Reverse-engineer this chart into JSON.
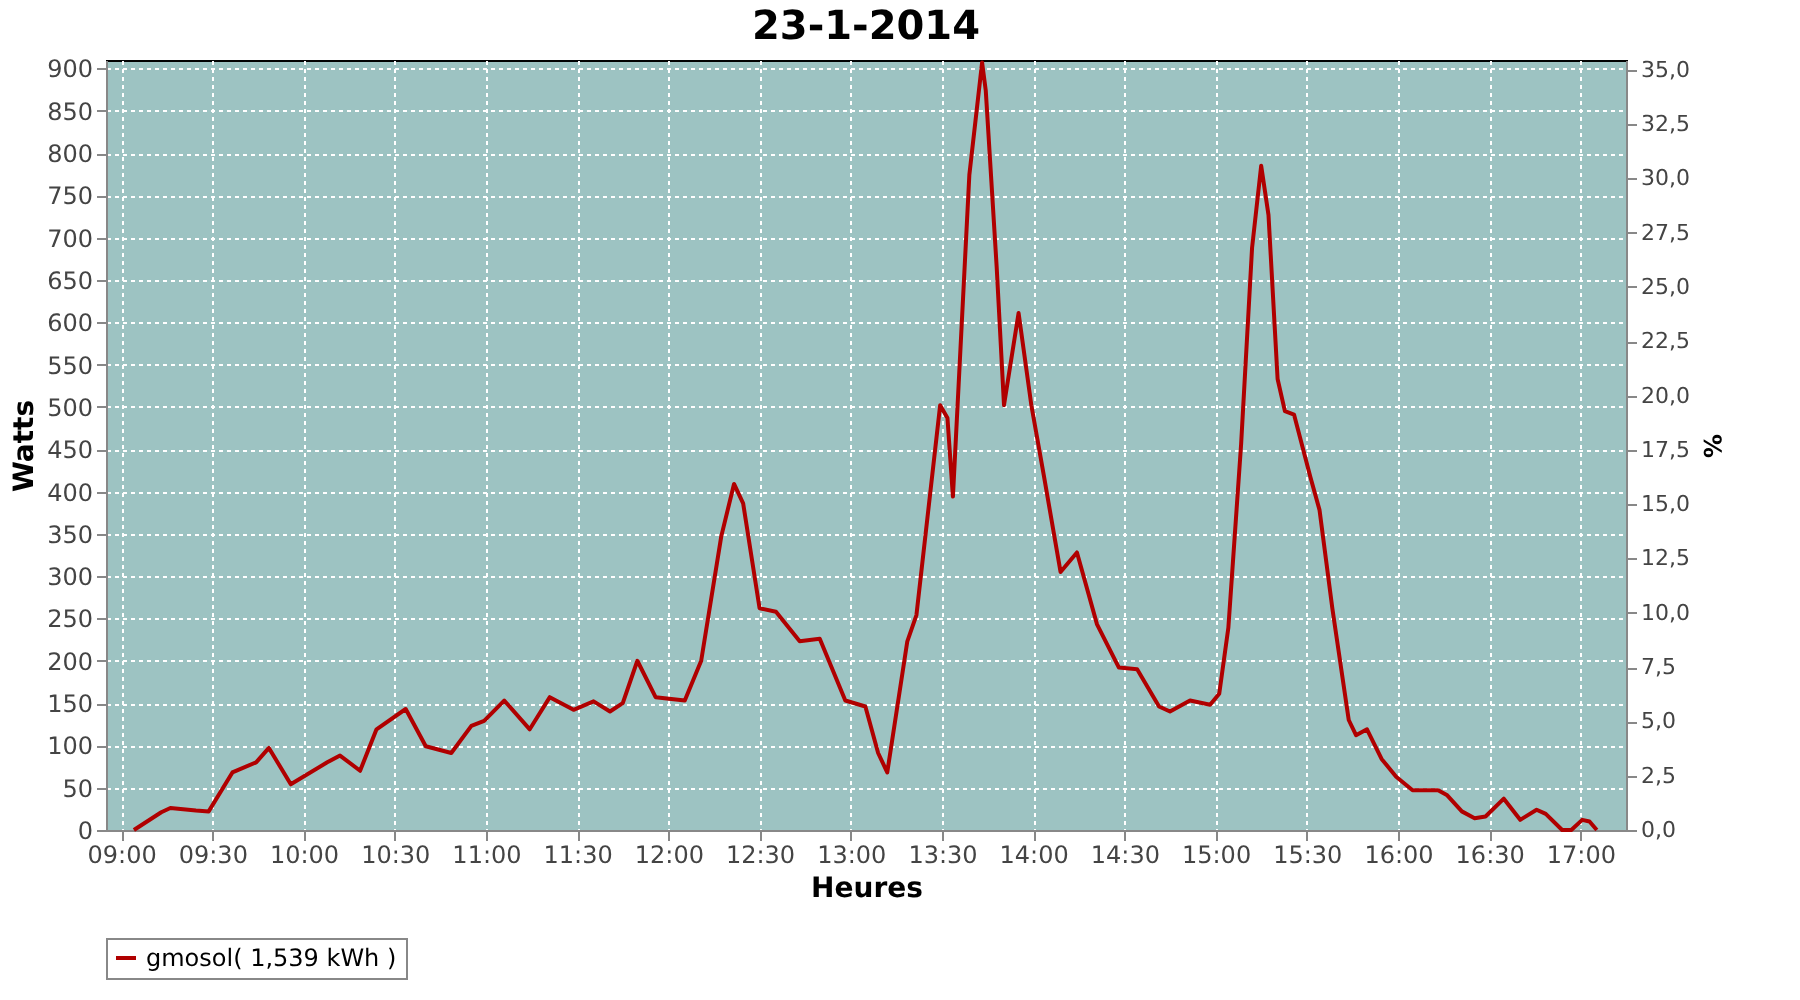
{
  "chart_data": {
    "type": "line",
    "title": "23-1-2014",
    "xlabel": "Heures",
    "ylabel": "Watts",
    "y2label": "%",
    "xlim": [
      8.917,
      17.25
    ],
    "xticks": [
      {
        "value": 9,
        "label": "09:00"
      },
      {
        "value": 9.5,
        "label": "09:30"
      },
      {
        "value": 10,
        "label": "10:00"
      },
      {
        "value": 10.5,
        "label": "10:30"
      },
      {
        "value": 11,
        "label": "11:00"
      },
      {
        "value": 11.5,
        "label": "11:30"
      },
      {
        "value": 12,
        "label": "12:00"
      },
      {
        "value": 12.5,
        "label": "12:30"
      },
      {
        "value": 13,
        "label": "13:00"
      },
      {
        "value": 13.5,
        "label": "13:30"
      },
      {
        "value": 14,
        "label": "14:00"
      },
      {
        "value": 14.5,
        "label": "14:30"
      },
      {
        "value": 15,
        "label": "15:00"
      },
      {
        "value": 15.5,
        "label": "15:30"
      },
      {
        "value": 16,
        "label": "16:00"
      },
      {
        "value": 16.5,
        "label": "16:30"
      },
      {
        "value": 17,
        "label": "17:00"
      }
    ],
    "ylim": [
      0,
      910
    ],
    "yticks": [
      0,
      50,
      100,
      150,
      200,
      250,
      300,
      350,
      400,
      450,
      500,
      550,
      600,
      650,
      700,
      750,
      800,
      850,
      900
    ],
    "y2lim": [
      0,
      35.45
    ],
    "y2ticks": [
      {
        "value": 0,
        "label": "0,0"
      },
      {
        "value": 2.5,
        "label": "2,5"
      },
      {
        "value": 5,
        "label": "5,0"
      },
      {
        "value": 7.5,
        "label": "7,5"
      },
      {
        "value": 10,
        "label": "10,0"
      },
      {
        "value": 12.5,
        "label": "12,5"
      },
      {
        "value": 15,
        "label": "15,0"
      },
      {
        "value": 17.5,
        "label": "17,5"
      },
      {
        "value": 20,
        "label": "20,0"
      },
      {
        "value": 22.5,
        "label": "22,5"
      },
      {
        "value": 25,
        "label": "25,0"
      },
      {
        "value": 27.5,
        "label": "27,5"
      },
      {
        "value": 30,
        "label": "30,0"
      },
      {
        "value": 32.5,
        "label": "32,5"
      },
      {
        "value": 35,
        "label": "35,0"
      }
    ],
    "grid": true,
    "legend": "bottom",
    "marker": "none",
    "line_style": "solid",
    "series": [
      {
        "name": "gmosol( 1,539 kWh )",
        "color": "#b00000",
        "x": [
          9.07,
          9.22,
          9.27,
          9.41,
          9.48,
          9.61,
          9.74,
          9.81,
          9.93,
          10.13,
          10.2,
          10.31,
          10.4,
          10.56,
          10.67,
          10.81,
          10.92,
          10.99,
          11.1,
          11.24,
          11.35,
          11.48,
          11.59,
          11.68,
          11.75,
          11.83,
          11.93,
          12.09,
          12.18,
          12.29,
          12.36,
          12.41,
          12.5,
          12.59,
          12.72,
          12.83,
          12.97,
          13.08,
          13.15,
          13.2,
          13.31,
          13.36,
          13.49,
          13.53,
          13.56,
          13.65,
          13.72,
          13.74,
          13.8,
          13.84,
          13.92,
          13.99,
          14.06,
          14.15,
          14.24,
          14.35,
          14.47,
          14.57,
          14.69,
          14.75,
          14.86,
          14.97,
          15.02,
          15.07,
          15.14,
          15.2,
          15.25,
          15.29,
          15.34,
          15.38,
          15.43,
          15.52,
          15.57,
          15.64,
          15.73,
          15.77,
          15.83,
          15.91,
          15.99,
          16.08,
          16.22,
          16.27,
          16.35,
          16.42,
          16.48,
          16.58,
          16.67,
          16.76,
          16.81,
          16.9,
          16.95,
          17.01,
          17.05,
          17.09
        ],
        "values": [
          0,
          21,
          26,
          23,
          22,
          68,
          80,
          97,
          54,
          80,
          88,
          70,
          119,
          143,
          99,
          91,
          123,
          129,
          153,
          119,
          157,
          142,
          152,
          140,
          150,
          200,
          157,
          153,
          200,
          347,
          409,
          386,
          262,
          258,
          223,
          226,
          153,
          146,
          91,
          68,
          223,
          254,
          502,
          487,
          394,
          774,
          907,
          874,
          665,
          502,
          611,
          502,
          417,
          305,
          328,
          243,
          192,
          190,
          146,
          140,
          153,
          148,
          161,
          239,
          456,
          688,
          785,
          727,
          533,
          495,
          491,
          417,
          378,
          262,
          130,
          112,
          119,
          84,
          63,
          47,
          47,
          41,
          22,
          14,
          16,
          37,
          12,
          24,
          19,
          0,
          0,
          12,
          10,
          0
        ]
      }
    ]
  }
}
